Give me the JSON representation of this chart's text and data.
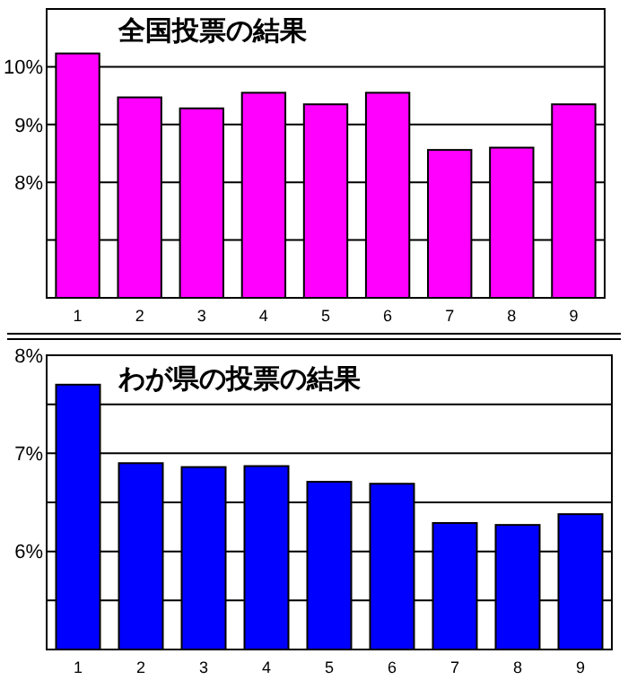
{
  "chart_data": [
    {
      "type": "bar",
      "title": "全国投票の結果",
      "categories": [
        "1",
        "2",
        "3",
        "4",
        "5",
        "6",
        "7",
        "8",
        "9"
      ],
      "values": [
        10.23,
        9.47,
        9.28,
        9.55,
        9.35,
        9.55,
        8.56,
        8.6,
        9.35
      ],
      "color": "#ff00ff",
      "ylim": [
        6,
        11
      ],
      "yticks": [
        {
          "value": 6,
          "label": null
        },
        {
          "value": 7,
          "label": null
        },
        {
          "value": 8,
          "label": "8%"
        },
        {
          "value": 9,
          "label": "9%"
        },
        {
          "value": 10,
          "label": "10%"
        }
      ],
      "grid": "y"
    },
    {
      "type": "bar",
      "title": "わが県の投票の結果",
      "categories": [
        "1",
        "2",
        "3",
        "4",
        "5",
        "6",
        "7",
        "8",
        "9"
      ],
      "values": [
        7.7,
        6.9,
        6.86,
        6.87,
        6.71,
        6.69,
        6.29,
        6.27,
        6.38
      ],
      "color": "#0000ff",
      "ylim": [
        5,
        8
      ],
      "yticks": [
        {
          "value": 5,
          "label": null
        },
        {
          "value": 5.5,
          "label": null
        },
        {
          "value": 6,
          "label": "6%"
        },
        {
          "value": 6.5,
          "label": null
        },
        {
          "value": 7,
          "label": "7%"
        },
        {
          "value": 7.5,
          "label": null
        },
        {
          "value": 8,
          "label": "8%"
        }
      ],
      "grid": "y"
    }
  ]
}
